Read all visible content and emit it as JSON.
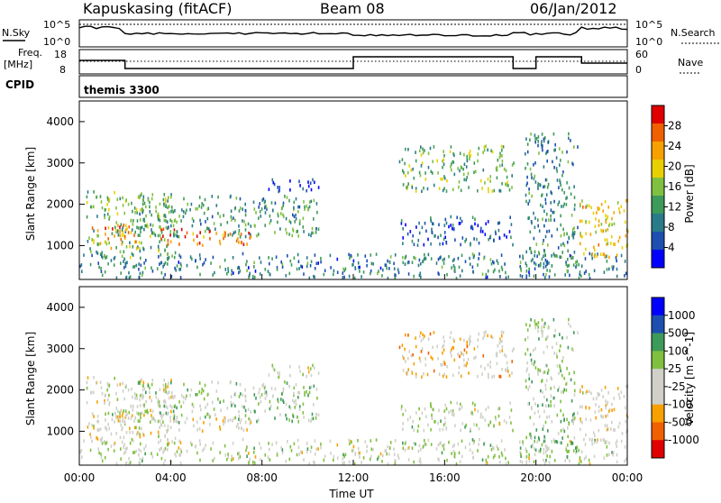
{
  "header": {
    "station": "Kapuskasing (fitACF)",
    "beam": "Beam 08",
    "date": "06/Jan/2012"
  },
  "noise_panel": {
    "left_label": "N.Sky",
    "right_label": "N.Search",
    "left_ticks": [
      "10^5",
      "10^0"
    ],
    "right_ticks": [
      "10^5",
      "10^0"
    ]
  },
  "freq_panel": {
    "left_label_top": "Freq.",
    "left_label_bottom": "[MHz]",
    "right_label": "Nave",
    "left_ticks": [
      "18",
      "8"
    ],
    "right_ticks": [
      "60",
      "0"
    ]
  },
  "cpid": {
    "label": "CPID",
    "program": "themis 3300"
  },
  "x_axis": {
    "label": "Time UT",
    "ticks": [
      "00:00",
      "04:00",
      "08:00",
      "12:00",
      "16:00",
      "20:00",
      "00:00"
    ]
  },
  "chart_data": [
    {
      "type": "heatmap",
      "name": "power",
      "ylabel": "Slant Range [km]",
      "xlabel": "Time UT",
      "x_range_hours": [
        0,
        24
      ],
      "ylim": [
        180,
        4500
      ],
      "y_ticks": [
        1000,
        2000,
        3000,
        4000
      ],
      "colorbar": {
        "label": "Power [dB]",
        "ticks": [
          "28",
          "24",
          "20",
          "16",
          "12",
          "8",
          "4"
        ],
        "range": [
          0,
          32
        ],
        "colors": [
          "#0000ff",
          "#1c4fb0",
          "#2a7a8a",
          "#3e9a5a",
          "#7fc040",
          "#e8d000",
          "#f8a000",
          "#f06000",
          "#e00000"
        ]
      },
      "regions": [
        {
          "t": [
            0.3,
            4.2
          ],
          "r": [
            700,
            2300
          ],
          "v": 14
        },
        {
          "t": [
            0.5,
            2.5
          ],
          "r": [
            900,
            1500
          ],
          "v": 24
        },
        {
          "t": [
            3.5,
            7.5
          ],
          "r": [
            1000,
            1400
          ],
          "v": 26
        },
        {
          "t": [
            2.5,
            10.5
          ],
          "r": [
            1200,
            2200
          ],
          "v": 12
        },
        {
          "t": [
            8.0,
            10.5
          ],
          "r": [
            2300,
            2600
          ],
          "v": 5
        },
        {
          "t": [
            0,
            24
          ],
          "r": [
            200,
            800
          ],
          "v": 9
        },
        {
          "t": [
            14.0,
            19.0
          ],
          "r": [
            1000,
            1700
          ],
          "v": 6
        },
        {
          "t": [
            14.0,
            19.0
          ],
          "r": [
            2300,
            3400
          ],
          "v": 14
        },
        {
          "t": [
            19.5,
            21.8
          ],
          "r": [
            500,
            3700
          ],
          "v": 10
        },
        {
          "t": [
            21.8,
            24.0
          ],
          "r": [
            700,
            2100
          ],
          "v": 20
        }
      ]
    },
    {
      "type": "heatmap",
      "name": "velocity",
      "ylabel": "Slant Range [km]",
      "xlabel": "Time UT",
      "x_range_hours": [
        0,
        24
      ],
      "ylim": [
        180,
        4500
      ],
      "y_ticks": [
        1000,
        2000,
        3000,
        4000
      ],
      "colorbar": {
        "label": "Velocity [m s^-1]",
        "ticks": [
          "1000",
          "500",
          "100",
          "25",
          "-25",
          "-100",
          "-500",
          "-1000"
        ],
        "range": [
          -1200,
          1200
        ],
        "colors": [
          "#e00000",
          "#f06000",
          "#f8a000",
          "#d0d0c8",
          "#d0d0c8",
          "#7fc040",
          "#3e9a5a",
          "#1c4fb0",
          "#0000ff"
        ]
      },
      "regions": [
        {
          "t": [
            0.3,
            4.2
          ],
          "r": [
            700,
            2300
          ],
          "v": -150
        },
        {
          "t": [
            0.5,
            2.5
          ],
          "r": [
            900,
            1500
          ],
          "v": 0
        },
        {
          "t": [
            3.5,
            7.5
          ],
          "r": [
            1000,
            1400
          ],
          "v": -200
        },
        {
          "t": [
            2.5,
            10.5
          ],
          "r": [
            1200,
            2200
          ],
          "v": 150
        },
        {
          "t": [
            8.0,
            10.5
          ],
          "r": [
            2300,
            2600
          ],
          "v": 0
        },
        {
          "t": [
            0,
            24
          ],
          "r": [
            200,
            800
          ],
          "v": 0
        },
        {
          "t": [
            14.0,
            19.0
          ],
          "r": [
            1000,
            1700
          ],
          "v": 0
        },
        {
          "t": [
            14.0,
            19.0
          ],
          "r": [
            2300,
            3400
          ],
          "v": -300
        },
        {
          "t": [
            19.5,
            21.8
          ],
          "r": [
            500,
            3700
          ],
          "v": 200
        },
        {
          "t": [
            21.8,
            24.0
          ],
          "r": [
            700,
            2100
          ],
          "v": -250
        }
      ]
    }
  ]
}
